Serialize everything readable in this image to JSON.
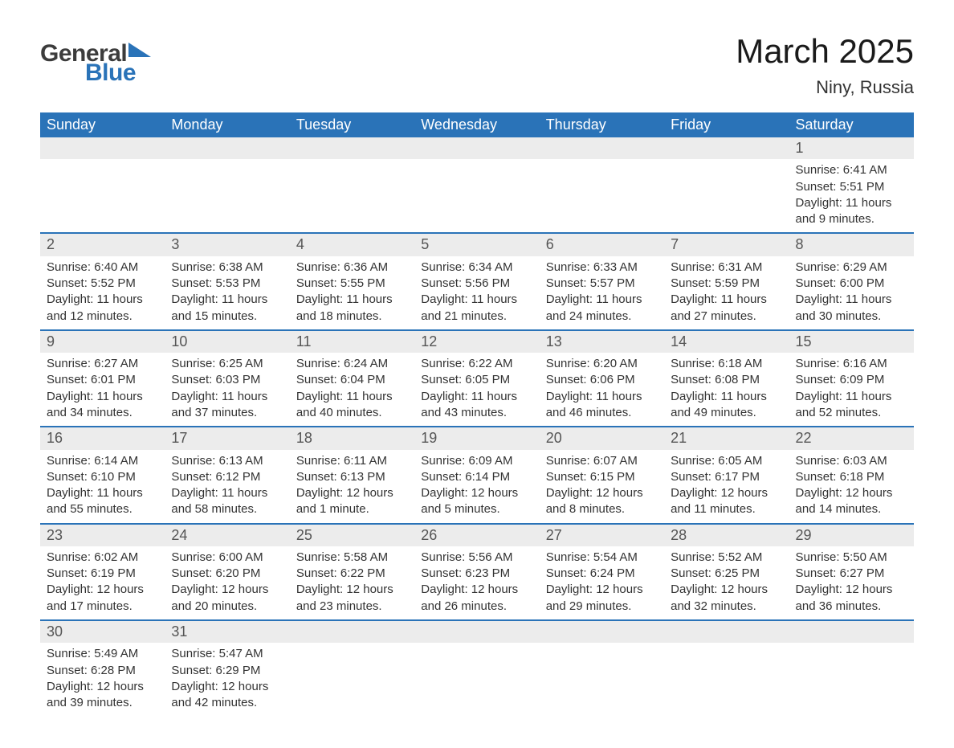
{
  "logo": {
    "text_gray": "General",
    "text_blue": "Blue",
    "tri_color": "#2a73b8"
  },
  "title": "March 2025",
  "location": "Niny, Russia",
  "colors": {
    "header_bg": "#2a73b8",
    "header_text": "#ffffff",
    "daynum_bg": "#ececec",
    "daynum_text": "#555555",
    "body_text": "#333333",
    "row_divider": "#2a73b8",
    "page_bg": "#ffffff"
  },
  "typography": {
    "title_fontsize": 42,
    "location_fontsize": 22,
    "header_fontsize": 18,
    "daynum_fontsize": 18,
    "body_fontsize": 15,
    "font_family": "Arial"
  },
  "day_headers": [
    "Sunday",
    "Monday",
    "Tuesday",
    "Wednesday",
    "Thursday",
    "Friday",
    "Saturday"
  ],
  "weeks": [
    [
      null,
      null,
      null,
      null,
      null,
      null,
      {
        "d": "1",
        "sr": "6:41 AM",
        "ss": "5:51 PM",
        "dl": "11 hours and 9 minutes."
      }
    ],
    [
      {
        "d": "2",
        "sr": "6:40 AM",
        "ss": "5:52 PM",
        "dl": "11 hours and 12 minutes."
      },
      {
        "d": "3",
        "sr": "6:38 AM",
        "ss": "5:53 PM",
        "dl": "11 hours and 15 minutes."
      },
      {
        "d": "4",
        "sr": "6:36 AM",
        "ss": "5:55 PM",
        "dl": "11 hours and 18 minutes."
      },
      {
        "d": "5",
        "sr": "6:34 AM",
        "ss": "5:56 PM",
        "dl": "11 hours and 21 minutes."
      },
      {
        "d": "6",
        "sr": "6:33 AM",
        "ss": "5:57 PM",
        "dl": "11 hours and 24 minutes."
      },
      {
        "d": "7",
        "sr": "6:31 AM",
        "ss": "5:59 PM",
        "dl": "11 hours and 27 minutes."
      },
      {
        "d": "8",
        "sr": "6:29 AM",
        "ss": "6:00 PM",
        "dl": "11 hours and 30 minutes."
      }
    ],
    [
      {
        "d": "9",
        "sr": "6:27 AM",
        "ss": "6:01 PM",
        "dl": "11 hours and 34 minutes."
      },
      {
        "d": "10",
        "sr": "6:25 AM",
        "ss": "6:03 PM",
        "dl": "11 hours and 37 minutes."
      },
      {
        "d": "11",
        "sr": "6:24 AM",
        "ss": "6:04 PM",
        "dl": "11 hours and 40 minutes."
      },
      {
        "d": "12",
        "sr": "6:22 AM",
        "ss": "6:05 PM",
        "dl": "11 hours and 43 minutes."
      },
      {
        "d": "13",
        "sr": "6:20 AM",
        "ss": "6:06 PM",
        "dl": "11 hours and 46 minutes."
      },
      {
        "d": "14",
        "sr": "6:18 AM",
        "ss": "6:08 PM",
        "dl": "11 hours and 49 minutes."
      },
      {
        "d": "15",
        "sr": "6:16 AM",
        "ss": "6:09 PM",
        "dl": "11 hours and 52 minutes."
      }
    ],
    [
      {
        "d": "16",
        "sr": "6:14 AM",
        "ss": "6:10 PM",
        "dl": "11 hours and 55 minutes."
      },
      {
        "d": "17",
        "sr": "6:13 AM",
        "ss": "6:12 PM",
        "dl": "11 hours and 58 minutes."
      },
      {
        "d": "18",
        "sr": "6:11 AM",
        "ss": "6:13 PM",
        "dl": "12 hours and 1 minute."
      },
      {
        "d": "19",
        "sr": "6:09 AM",
        "ss": "6:14 PM",
        "dl": "12 hours and 5 minutes."
      },
      {
        "d": "20",
        "sr": "6:07 AM",
        "ss": "6:15 PM",
        "dl": "12 hours and 8 minutes."
      },
      {
        "d": "21",
        "sr": "6:05 AM",
        "ss": "6:17 PM",
        "dl": "12 hours and 11 minutes."
      },
      {
        "d": "22",
        "sr": "6:03 AM",
        "ss": "6:18 PM",
        "dl": "12 hours and 14 minutes."
      }
    ],
    [
      {
        "d": "23",
        "sr": "6:02 AM",
        "ss": "6:19 PM",
        "dl": "12 hours and 17 minutes."
      },
      {
        "d": "24",
        "sr": "6:00 AM",
        "ss": "6:20 PM",
        "dl": "12 hours and 20 minutes."
      },
      {
        "d": "25",
        "sr": "5:58 AM",
        "ss": "6:22 PM",
        "dl": "12 hours and 23 minutes."
      },
      {
        "d": "26",
        "sr": "5:56 AM",
        "ss": "6:23 PM",
        "dl": "12 hours and 26 minutes."
      },
      {
        "d": "27",
        "sr": "5:54 AM",
        "ss": "6:24 PM",
        "dl": "12 hours and 29 minutes."
      },
      {
        "d": "28",
        "sr": "5:52 AM",
        "ss": "6:25 PM",
        "dl": "12 hours and 32 minutes."
      },
      {
        "d": "29",
        "sr": "5:50 AM",
        "ss": "6:27 PM",
        "dl": "12 hours and 36 minutes."
      }
    ],
    [
      {
        "d": "30",
        "sr": "5:49 AM",
        "ss": "6:28 PM",
        "dl": "12 hours and 39 minutes."
      },
      {
        "d": "31",
        "sr": "5:47 AM",
        "ss": "6:29 PM",
        "dl": "12 hours and 42 minutes."
      },
      null,
      null,
      null,
      null,
      null
    ]
  ],
  "labels": {
    "sunrise": "Sunrise:",
    "sunset": "Sunset:",
    "daylight": "Daylight:"
  }
}
